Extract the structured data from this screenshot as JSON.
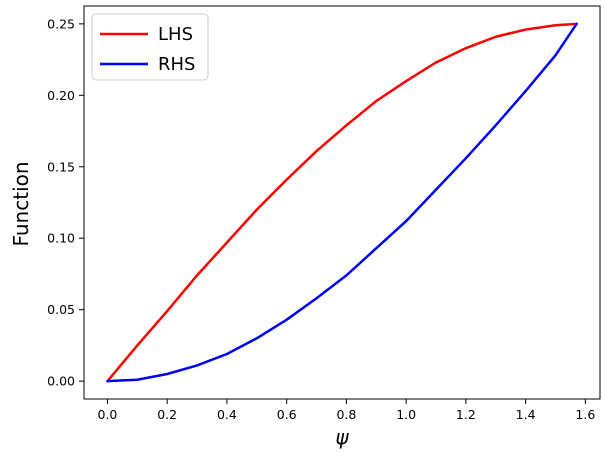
{
  "chart_data": {
    "type": "line",
    "title": "",
    "xlabel": "ψ",
    "ylabel": "Function",
    "xlim": [
      -0.0785,
      1.649
    ],
    "ylim": [
      -0.0125,
      0.2625
    ],
    "xticks": [
      0.0,
      0.2,
      0.4,
      0.6,
      0.8,
      1.0,
      1.2,
      1.4,
      1.6
    ],
    "xtick_labels": [
      "0.0",
      "0.2",
      "0.4",
      "0.6",
      "0.8",
      "1.0",
      "1.2",
      "1.4",
      "1.6"
    ],
    "yticks": [
      0.0,
      0.05,
      0.1,
      0.15,
      0.2,
      0.25
    ],
    "ytick_labels": [
      "0.00",
      "0.05",
      "0.10",
      "0.15",
      "0.20",
      "0.25"
    ],
    "grid": false,
    "legend": {
      "placement": "upper-left",
      "entries": [
        "LHS",
        "RHS"
      ]
    },
    "series": [
      {
        "name": "LHS",
        "color": "#ff0000",
        "x": [
          0.0,
          0.1,
          0.2,
          0.3,
          0.4,
          0.5,
          0.6,
          0.7,
          0.8,
          0.9,
          1.0,
          1.1,
          1.2,
          1.3,
          1.4,
          1.5,
          1.5708
        ],
        "y": [
          0.0,
          0.025,
          0.049,
          0.074,
          0.097,
          0.12,
          0.141,
          0.161,
          0.179,
          0.196,
          0.21,
          0.223,
          0.233,
          0.241,
          0.246,
          0.249,
          0.25
        ]
      },
      {
        "name": "RHS",
        "color": "#0000ff",
        "x": [
          0.0,
          0.1,
          0.2,
          0.3,
          0.4,
          0.5,
          0.6,
          0.7,
          0.8,
          0.9,
          1.0,
          1.1,
          1.2,
          1.3,
          1.4,
          1.5,
          1.5708
        ],
        "y": [
          0.0,
          0.001,
          0.005,
          0.011,
          0.019,
          0.03,
          0.043,
          0.058,
          0.074,
          0.093,
          0.112,
          0.134,
          0.156,
          0.179,
          0.203,
          0.228,
          0.25
        ]
      }
    ]
  }
}
